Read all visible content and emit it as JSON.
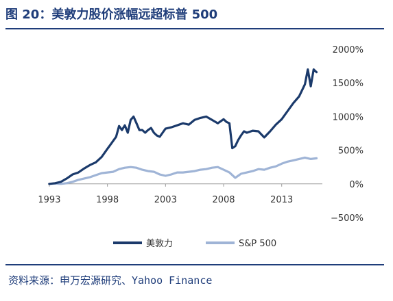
{
  "title": "图 20：美敦力股价涨幅远超标普 500",
  "source": "资料来源：申万宏源研究、Yahoo Finance",
  "colors": {
    "title": "#1f3d7a",
    "medtronic": "#1b3a6b",
    "sp500": "#9fb4d6"
  },
  "chart_data": {
    "type": "line",
    "x_ticks": [
      "1993",
      "1998",
      "2003",
      "2008",
      "2013"
    ],
    "y_ticks": [
      "2000%",
      "1500%",
      "1000%",
      "500%",
      "0%",
      "−500%"
    ],
    "xlim": [
      1992,
      2016.5
    ],
    "ylim": [
      -500,
      2000
    ],
    "series": [
      {
        "name": "美敦力",
        "x": [
          1993.0,
          1993.5,
          1994.0,
          1994.5,
          1995.0,
          1995.5,
          1996.0,
          1996.5,
          1997.0,
          1997.5,
          1998.0,
          1998.25,
          1998.5,
          1998.75,
          1999.0,
          1999.25,
          1999.5,
          1999.75,
          2000.0,
          2000.25,
          2000.5,
          2000.75,
          2001.0,
          2001.25,
          2001.5,
          2001.75,
          2002.0,
          2002.25,
          2002.5,
          2002.75,
          2003.0,
          2003.5,
          2004.0,
          2004.5,
          2005.0,
          2005.5,
          2006.0,
          2006.5,
          2007.0,
          2007.5,
          2008.0,
          2008.25,
          2008.5,
          2008.75,
          2009.0,
          2009.25,
          2009.5,
          2009.75,
          2010.0,
          2010.5,
          2011.0,
          2011.5,
          2012.0,
          2012.5,
          2013.0,
          2013.5,
          2014.0,
          2014.5,
          2015.0,
          2015.25,
          2015.5,
          2015.75,
          2016.0
        ],
        "values": [
          0,
          10,
          30,
          80,
          140,
          170,
          230,
          280,
          320,
          400,
          520,
          580,
          640,
          700,
          860,
          800,
          870,
          760,
          950,
          1000,
          900,
          800,
          800,
          760,
          800,
          830,
          760,
          720,
          700,
          760,
          820,
          840,
          870,
          900,
          880,
          950,
          980,
          1000,
          950,
          900,
          960,
          920,
          900,
          530,
          560,
          650,
          720,
          780,
          760,
          790,
          780,
          690,
          780,
          880,
          960,
          1080,
          1200,
          1300,
          1480,
          1700,
          1450,
          1700,
          1660
        ]
      },
      {
        "name": "S&P 500",
        "x": [
          1993.0,
          1993.5,
          1994.0,
          1994.5,
          1995.0,
          1995.5,
          1996.0,
          1996.5,
          1997.0,
          1997.5,
          1998.0,
          1998.5,
          1999.0,
          1999.5,
          2000.0,
          2000.5,
          2001.0,
          2001.5,
          2002.0,
          2002.5,
          2003.0,
          2003.5,
          2004.0,
          2004.5,
          2005.0,
          2005.5,
          2006.0,
          2006.5,
          2007.0,
          2007.5,
          2008.0,
          2008.5,
          2009.0,
          2009.25,
          2009.5,
          2010.0,
          2010.5,
          2011.0,
          2011.5,
          2012.0,
          2012.5,
          2013.0,
          2013.5,
          2014.0,
          2014.5,
          2015.0,
          2015.5,
          2016.0
        ],
        "values": [
          0,
          5,
          0,
          10,
          30,
          60,
          80,
          100,
          130,
          160,
          170,
          180,
          220,
          240,
          250,
          240,
          210,
          190,
          180,
          140,
          120,
          140,
          170,
          170,
          180,
          190,
          210,
          220,
          240,
          250,
          210,
          170,
          90,
          120,
          150,
          170,
          190,
          220,
          210,
          240,
          260,
          300,
          330,
          350,
          370,
          390,
          370,
          380
        ]
      }
    ],
    "legend": "bottom-center"
  }
}
